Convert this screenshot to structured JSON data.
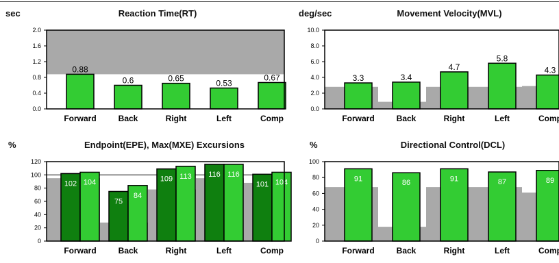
{
  "colors": {
    "bar": "#33cc33",
    "bar_dark": "#0f7f0f",
    "reference": "#a9a9a9",
    "frame": "#000000"
  },
  "chart_data": [
    {
      "id": "rt",
      "type": "bar",
      "title": "Reaction Time(RT)",
      "unit_label": "sec",
      "categories": [
        "Forward",
        "Back",
        "Right",
        "Left",
        "Comp"
      ],
      "ylim": [
        0,
        2.0
      ],
      "yticks": [
        "0.0",
        "0.4",
        "0.8",
        "1.2",
        "1.6",
        "2.0"
      ],
      "series": [
        {
          "values": [
            0.88,
            0.6,
            0.65,
            0.53,
            0.67
          ],
          "labels": [
            "0.88",
            "0.6",
            "0.65",
            "0.53",
            "0.67"
          ]
        }
      ],
      "reference_band": {
        "from": 0.88,
        "to": 2.0
      }
    },
    {
      "id": "mvl",
      "type": "bar",
      "title": "Movement Velocity(MVL)",
      "unit_label": "deg/sec",
      "categories": [
        "Forward",
        "Back",
        "Right",
        "Left",
        "Comp"
      ],
      "ylim": [
        0,
        10.0
      ],
      "yticks": [
        "0.0",
        "2.0",
        "4.0",
        "6.0",
        "8.0",
        "10.0"
      ],
      "series": [
        {
          "values": [
            3.3,
            3.4,
            4.7,
            5.8,
            4.3
          ],
          "labels": [
            "3.3",
            "3.4",
            "4.7",
            "5.8",
            "4.3"
          ]
        }
      ],
      "reference": {
        "values": [
          2.8,
          0.9,
          2.8,
          2.8,
          2.9
        ]
      }
    },
    {
      "id": "epe",
      "type": "bar",
      "title": "Endpoint(EPE), Max(MXE) Excursions",
      "unit_label": "%",
      "categories": [
        "Forward",
        "Back",
        "Right",
        "Left",
        "Comp"
      ],
      "ylim": [
        0,
        120
      ],
      "yticks": [
        "0",
        "20",
        "40",
        "60",
        "80",
        "100",
        "120"
      ],
      "series": [
        {
          "values": [
            102,
            75,
            109,
            116,
            101
          ],
          "labels": [
            "102",
            "75",
            "109",
            "116",
            "101"
          ]
        },
        {
          "values": [
            104,
            84,
            113,
            116,
            104
          ],
          "labels": [
            "104",
            "84",
            "113",
            "116",
            "104"
          ]
        }
      ],
      "reference": {
        "values": [
          95,
          28,
          78,
          95,
          88
        ]
      },
      "reference_line": 100
    },
    {
      "id": "dcl",
      "type": "bar",
      "title": "Directional Control(DCL)",
      "unit_label": "%",
      "categories": [
        "Forward",
        "Back",
        "Right",
        "Left",
        "Comp"
      ],
      "ylim": [
        0,
        100
      ],
      "yticks": [
        "0",
        "20",
        "40",
        "60",
        "80",
        "100"
      ],
      "series": [
        {
          "values": [
            91,
            86,
            91,
            87,
            89
          ],
          "labels": [
            "91",
            "86",
            "91",
            "87",
            "89"
          ]
        }
      ],
      "reference": {
        "values": [
          68,
          18,
          68,
          68,
          61
        ]
      }
    }
  ]
}
